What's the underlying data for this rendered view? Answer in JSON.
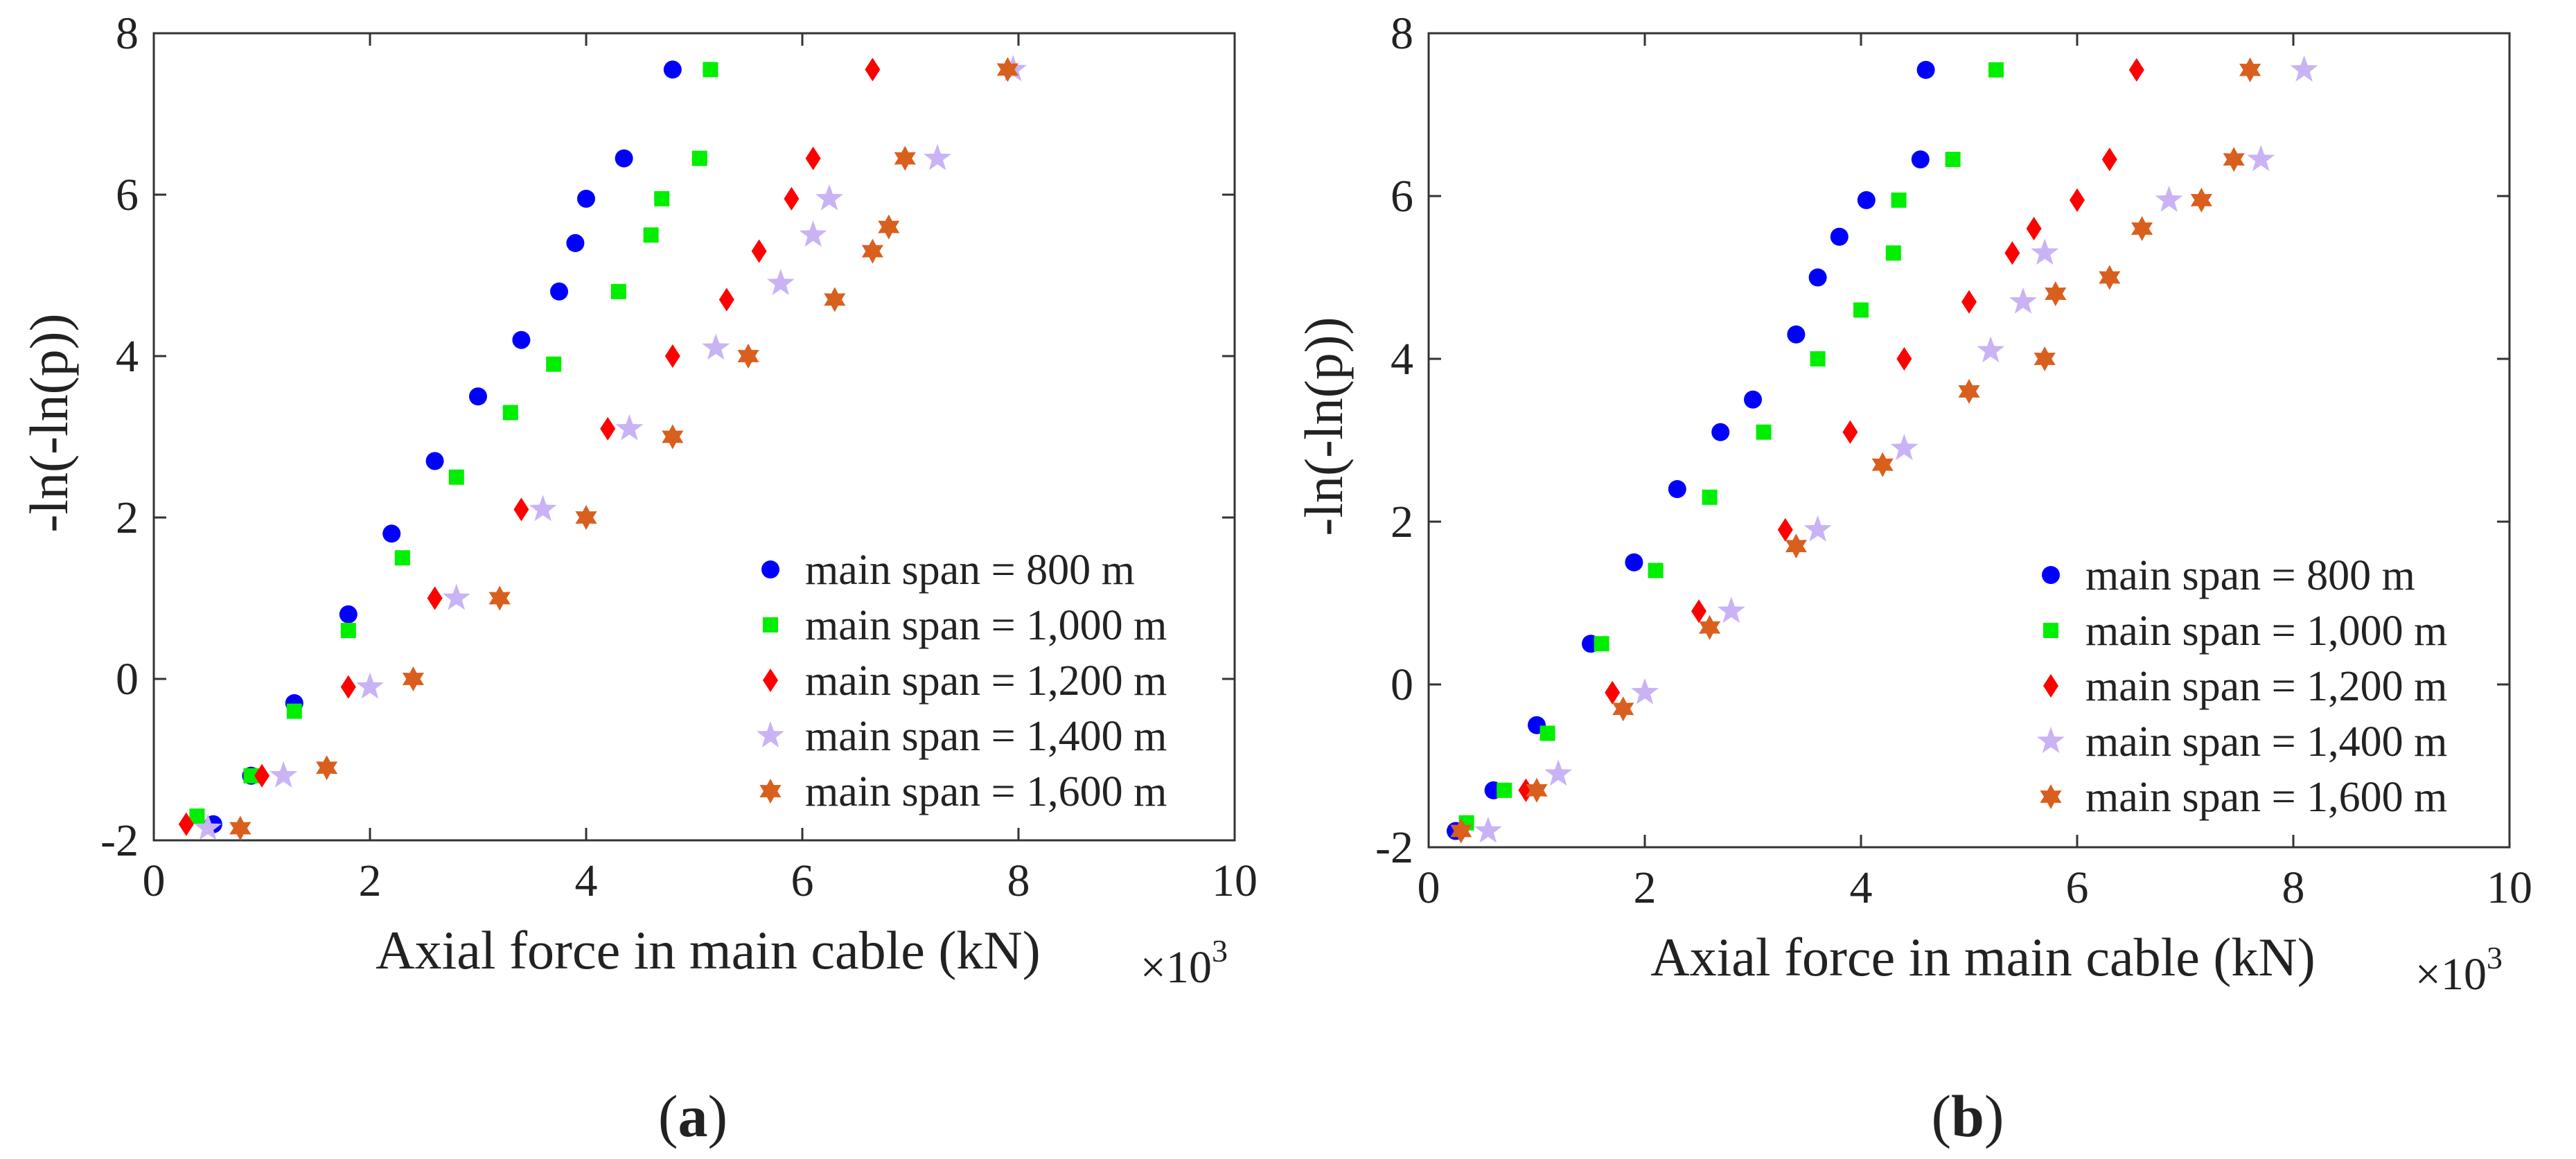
{
  "figure": {
    "panels": [
      {
        "label_open": "(",
        "label_letter": "a",
        "label_close": ")"
      },
      {
        "label_open": "(",
        "label_letter": "b",
        "label_close": ")"
      }
    ]
  },
  "colors": {
    "axis": "#333333",
    "series": [
      "#0000ff",
      "#00ee00",
      "#ff0000",
      "#c9b3f5",
      "#d95f1e"
    ]
  },
  "chart_data": [
    {
      "type": "scatter",
      "panel": "(a)",
      "xlabel": "Axial force in main cable (kN)",
      "xlabel_multiplier": "×10",
      "xlabel_exponent": "3",
      "ylabel": "-ln(-ln(p))",
      "xlim": [
        0,
        10
      ],
      "ylim": [
        -2,
        8
      ],
      "xticks": [
        "0",
        "2",
        "4",
        "6",
        "8",
        "10"
      ],
      "yticks": [
        "-2",
        "0",
        "2",
        "4",
        "6",
        "8"
      ],
      "grid": false,
      "legend_position": "bottom-right",
      "series": [
        {
          "name": "main span = 800 m",
          "marker": "circle",
          "x": [
            0.55,
            0.9,
            1.3,
            1.8,
            2.2,
            2.6,
            3.0,
            3.4,
            3.75,
            3.9,
            4.0,
            4.35,
            4.8
          ],
          "y": [
            -1.8,
            -1.2,
            -0.3,
            0.8,
            1.8,
            2.7,
            3.5,
            4.2,
            4.8,
            5.4,
            5.95,
            6.45,
            7.55
          ]
        },
        {
          "name": "main span = 1,000 m",
          "marker": "square",
          "x": [
            0.4,
            0.9,
            1.3,
            1.8,
            2.3,
            2.8,
            3.3,
            3.7,
            4.3,
            4.6,
            4.7,
            5.05,
            5.15
          ],
          "y": [
            -1.7,
            -1.2,
            -0.4,
            0.6,
            1.5,
            2.5,
            3.3,
            3.9,
            4.8,
            5.5,
            5.95,
            6.45,
            7.55
          ]
        },
        {
          "name": "main span = 1,200 m",
          "marker": "diamond",
          "x": [
            0.3,
            1.0,
            1.8,
            2.6,
            3.4,
            4.2,
            4.8,
            5.3,
            5.6,
            5.9,
            6.1,
            6.65
          ],
          "y": [
            -1.8,
            -1.2,
            -0.1,
            1.0,
            2.1,
            3.1,
            4.0,
            4.7,
            5.3,
            5.95,
            6.45,
            7.55
          ]
        },
        {
          "name": "main span = 1,400 m",
          "marker": "star5",
          "x": [
            0.5,
            1.2,
            2.0,
            2.8,
            3.6,
            4.4,
            5.2,
            5.8,
            6.1,
            6.25,
            7.25,
            7.95
          ],
          "y": [
            -1.85,
            -1.2,
            -0.1,
            1.0,
            2.1,
            3.1,
            4.1,
            4.9,
            5.5,
            5.95,
            6.45,
            7.55
          ]
        },
        {
          "name": "main span = 1,600 m",
          "marker": "star6",
          "x": [
            0.8,
            1.6,
            2.4,
            3.2,
            4.0,
            4.8,
            5.5,
            6.3,
            6.65,
            6.8,
            6.95,
            7.9
          ],
          "y": [
            -1.85,
            -1.1,
            0.0,
            1.0,
            2.0,
            3.0,
            4.0,
            4.7,
            5.3,
            5.6,
            6.45,
            7.55
          ]
        }
      ]
    },
    {
      "type": "scatter",
      "panel": "(b)",
      "xlabel": "Axial force in main cable (kN)",
      "xlabel_multiplier": "×10",
      "xlabel_exponent": "3",
      "ylabel": "-ln(-ln(p))",
      "xlim": [
        0,
        10
      ],
      "ylim": [
        -2,
        8
      ],
      "xticks": [
        "0",
        "2",
        "4",
        "6",
        "8",
        "10"
      ],
      "yticks": [
        "-2",
        "0",
        "2",
        "4",
        "6",
        "8"
      ],
      "grid": false,
      "legend_position": "bottom-right",
      "series": [
        {
          "name": "main span = 800 m",
          "marker": "circle",
          "x": [
            0.25,
            0.6,
            1.0,
            1.5,
            1.9,
            2.3,
            2.7,
            3.0,
            3.4,
            3.6,
            3.8,
            4.05,
            4.55,
            4.6
          ],
          "y": [
            -1.8,
            -1.3,
            -0.5,
            0.5,
            1.5,
            2.4,
            3.1,
            3.5,
            4.3,
            5.0,
            5.5,
            5.95,
            6.45,
            7.55
          ]
        },
        {
          "name": "main span = 1,000 m",
          "marker": "square",
          "x": [
            0.35,
            0.7,
            1.1,
            1.6,
            2.1,
            2.6,
            3.1,
            3.6,
            4.0,
            4.3,
            4.35,
            4.85,
            5.25
          ],
          "y": [
            -1.7,
            -1.3,
            -0.6,
            0.5,
            1.4,
            2.3,
            3.1,
            4.0,
            4.6,
            5.3,
            5.95,
            6.45,
            7.55
          ]
        },
        {
          "name": "main span = 1,200 m",
          "marker": "diamond",
          "x": [
            0.3,
            0.9,
            1.7,
            2.5,
            3.3,
            3.9,
            4.4,
            5.0,
            5.4,
            5.6,
            6.0,
            6.3,
            6.55
          ],
          "y": [
            -1.8,
            -1.3,
            -0.1,
            0.9,
            1.9,
            3.1,
            4.0,
            4.7,
            5.3,
            5.6,
            5.95,
            6.45,
            7.55
          ]
        },
        {
          "name": "main span = 1,400 m",
          "marker": "star5",
          "x": [
            0.55,
            1.2,
            2.0,
            2.8,
            3.6,
            4.4,
            5.2,
            5.5,
            5.7,
            6.85,
            7.7,
            8.1
          ],
          "y": [
            -1.8,
            -1.1,
            -0.1,
            0.9,
            1.9,
            2.9,
            4.1,
            4.7,
            5.3,
            5.95,
            6.45,
            7.55
          ]
        },
        {
          "name": "main span = 1,600 m",
          "marker": "star6",
          "x": [
            0.3,
            1.0,
            1.8,
            2.6,
            3.4,
            4.2,
            5.0,
            5.7,
            5.8,
            6.3,
            6.6,
            7.15,
            7.45,
            7.6
          ],
          "y": [
            -1.8,
            -1.3,
            -0.3,
            0.7,
            1.7,
            2.7,
            3.6,
            4.0,
            4.8,
            5.0,
            5.6,
            5.95,
            6.45,
            7.55
          ]
        }
      ]
    }
  ]
}
